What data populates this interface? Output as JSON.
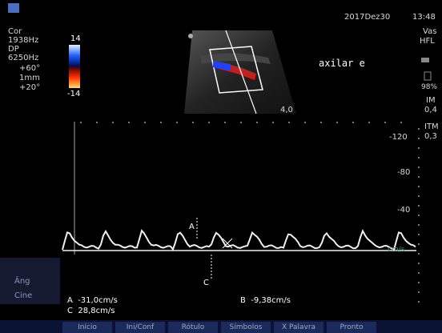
{
  "header": {
    "date": "2017Dez30",
    "time": "13:48"
  },
  "left_panel": {
    "mode": "Cor",
    "freq1": "1938Hz",
    "mode2": "DP",
    "freq2": "6250Hz",
    "angle": "+60°",
    "gate": "1mm",
    "steer": "+20°"
  },
  "color_scale": {
    "top": "14",
    "bottom": "-14"
  },
  "image": {
    "depth": "4,0",
    "annotation": "axilar e"
  },
  "right_panel": {
    "preset": "Vas",
    "probe": "HFL",
    "percent": "98%",
    "mi_label": "IM",
    "mi": "0,4",
    "tis_label": "ITM",
    "tis": "0,3"
  },
  "spectral": {
    "scale": [
      "-120",
      "-80",
      "-40"
    ],
    "unit": "cm/s",
    "cursor_a": "A",
    "cursor_c": "C"
  },
  "controls": [
    "Âng",
    "Cine"
  ],
  "measurements": [
    "A  -31,0cm/s",
    "B  -9,38cm/s",
    "C  28,8cm/s"
  ],
  "menu": [
    "Início",
    "Ini/Conf",
    "Rótulo",
    "Símbolos",
    "X Palavra",
    "Pronto"
  ]
}
